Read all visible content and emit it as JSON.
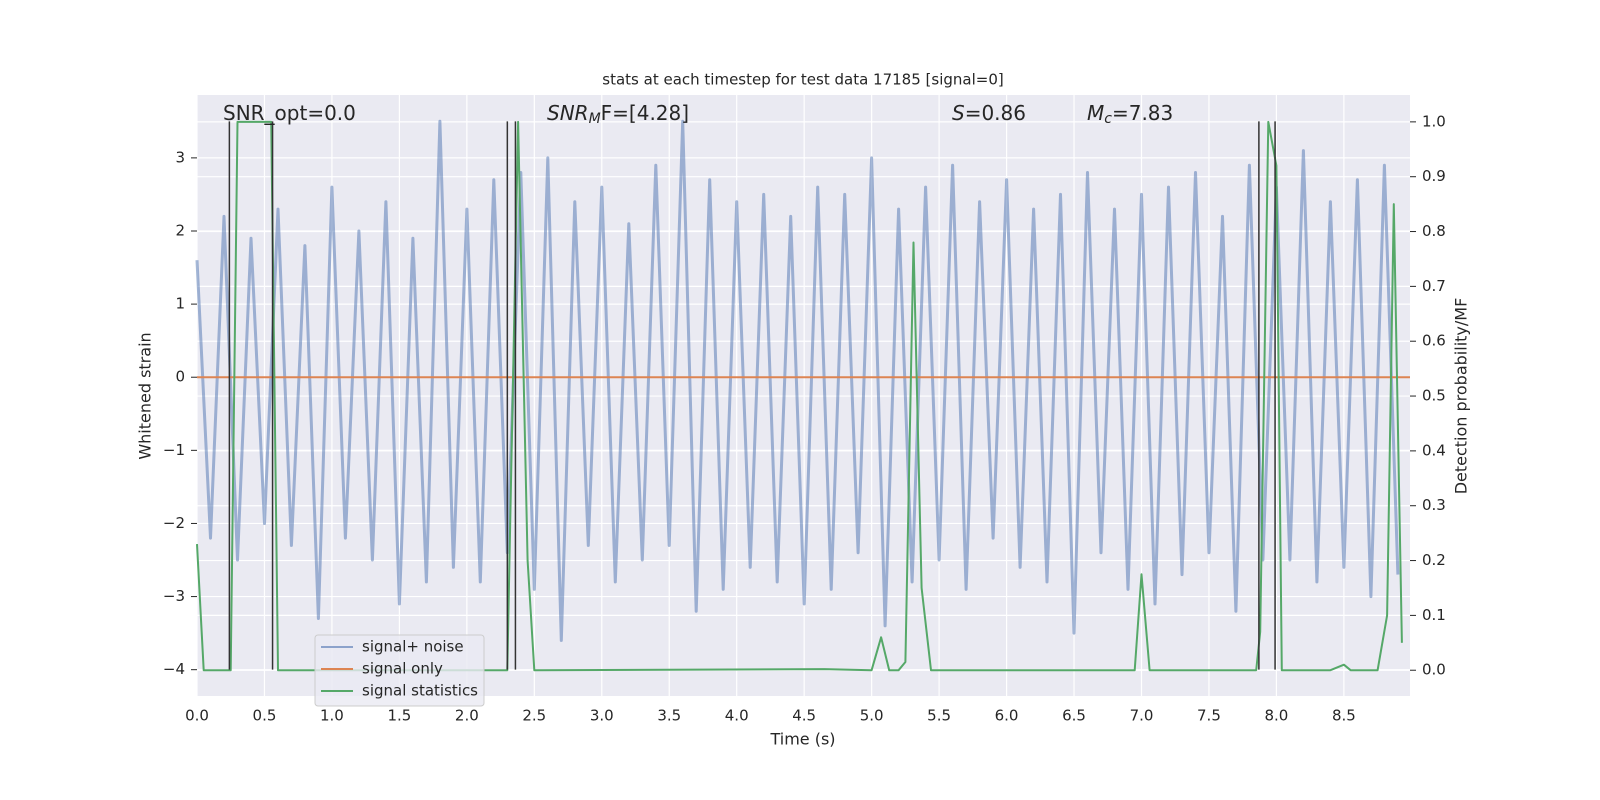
{
  "chart_data": {
    "type": "line",
    "title": "stats at each timestep for test data 17185 [signal=0]",
    "xlabel": "Time (s)",
    "ylabel": "Whitened strain",
    "y2label": "Detection probability/MF",
    "xlim": [
      0,
      8.99
    ],
    "ylim": [
      -4.36,
      3.86
    ],
    "y2lim": [
      -0.047,
      1.049
    ],
    "xticks": [
      {
        "value": 0,
        "label": "0.0"
      },
      0.5,
      {
        "value": 1,
        "label": "1.0"
      },
      1.5,
      {
        "value": 2,
        "label": "2.0"
      },
      2.5,
      {
        "value": 3,
        "label": "3.0"
      },
      3.5,
      {
        "value": 4,
        "label": "4.0"
      },
      4.5,
      {
        "value": 5,
        "label": "5.0"
      },
      5.5,
      {
        "value": 6,
        "label": "6.0"
      },
      6.5,
      {
        "value": 7,
        "label": "7.0"
      },
      7.5,
      {
        "value": 8,
        "label": "8.0"
      },
      8.5
    ],
    "yticks": [
      {
        "value": -4,
        "label": "−4"
      },
      {
        "value": -3,
        "label": "−3"
      },
      {
        "value": -2,
        "label": "−2"
      },
      {
        "value": -1,
        "label": "−1"
      },
      0,
      1,
      2,
      3
    ],
    "y2ticks": [
      {
        "value": 0,
        "label": "0.0"
      },
      0.1,
      0.2,
      0.3,
      0.4,
      0.5,
      0.6,
      0.7,
      0.8,
      0.9,
      {
        "value": 1,
        "label": "1.0"
      }
    ],
    "grid": true,
    "legend": "lower left",
    "series": [
      {
        "name": "signal+ noise",
        "color": "#4c72b0",
        "axis": "y",
        "x": [
          0,
          0.1,
          0.2,
          0.3,
          0.4,
          0.5,
          0.6,
          0.7,
          0.8,
          0.9,
          1,
          1.1,
          1.2,
          1.3,
          1.4,
          1.5,
          1.6,
          1.7,
          1.8,
          1.9,
          2,
          2.1,
          2.2,
          2.3,
          2.4,
          2.5,
          2.6,
          2.7,
          2.8,
          2.9,
          3,
          3.1,
          3.2,
          3.3,
          3.4,
          3.5,
          3.6,
          3.7,
          3.8,
          3.9,
          4,
          4.1,
          4.2,
          4.3,
          4.4,
          4.5,
          4.6,
          4.7,
          4.8,
          4.9,
          5,
          5.1,
          5.2,
          5.3,
          5.4,
          5.5,
          5.6,
          5.7,
          5.8,
          5.9,
          6,
          6.1,
          6.2,
          6.3,
          6.4,
          6.5,
          6.6,
          6.7,
          6.8,
          6.9,
          7,
          7.1,
          7.2,
          7.3,
          7.4,
          7.5,
          7.6,
          7.7,
          7.8,
          7.9,
          8,
          8.1,
          8.2,
          8.3,
          8.4,
          8.5,
          8.6,
          8.7,
          8.8,
          8.9
        ],
        "values": [
          1.6,
          -2.2,
          2.2,
          -2.5,
          1.9,
          -2.0,
          2.3,
          -2.3,
          1.8,
          -3.3,
          2.6,
          -2.2,
          2.0,
          -2.5,
          2.4,
          -3.1,
          1.9,
          -2.8,
          3.5,
          -2.6,
          2.3,
          -2.8,
          2.7,
          -2.4,
          2.8,
          -2.9,
          3.0,
          -3.6,
          2.4,
          -2.3,
          2.6,
          -2.8,
          2.1,
          -2.5,
          2.9,
          -2.3,
          3.5,
          -3.2,
          2.7,
          -2.9,
          2.4,
          -2.6,
          2.5,
          -2.8,
          2.2,
          -3.1,
          2.6,
          -2.9,
          2.5,
          -2.4,
          3.0,
          -3.4,
          2.3,
          -2.8,
          2.6,
          -2.5,
          2.9,
          -2.9,
          2.4,
          -2.2,
          2.7,
          -2.6,
          2.3,
          -2.8,
          2.5,
          -3.5,
          2.8,
          -2.4,
          2.3,
          -2.9,
          2.5,
          -3.1,
          2.6,
          -2.7,
          2.8,
          -2.4,
          2.2,
          -3.2,
          2.9,
          -2.5,
          2.6,
          -2.5,
          3.1,
          -2.8,
          2.4,
          -2.6,
          2.7,
          -3.0,
          2.9,
          -2.7
        ]
      },
      {
        "name": "signal only",
        "color": "#dd8452",
        "axis": "y",
        "x": [
          0,
          8.99
        ],
        "values": [
          0,
          0
        ]
      },
      {
        "name": "signal statistics",
        "color": "#55a868",
        "axis": "y2",
        "x": [
          0,
          0.05,
          0.25,
          0.3,
          0.55,
          0.6,
          0.65,
          2.3,
          2.38,
          2.45,
          2.5,
          4.65,
          5.0,
          5.07,
          5.13,
          5.2,
          5.25,
          5.31,
          5.37,
          5.44,
          6.95,
          7.0,
          7.06,
          7.85,
          7.88,
          7.94,
          8.0,
          8.04,
          8.4,
          8.5,
          8.55,
          8.75,
          8.82,
          8.87,
          8.93
        ],
        "values": [
          0.23,
          0,
          0,
          1.0,
          1.0,
          0,
          0,
          0,
          1.0,
          0.2,
          0,
          0.002,
          0,
          0.06,
          0,
          0,
          0.015,
          0.78,
          0.15,
          0,
          0,
          0.175,
          0,
          0,
          0.07,
          1.0,
          0.92,
          0,
          0,
          0.01,
          0,
          0,
          0.1,
          0.85,
          0.05
        ]
      }
    ],
    "vlines": {
      "x": [
        0.24,
        0.56,
        2.3,
        2.36,
        7.87,
        7.99
      ],
      "ymin": -4,
      "ymax": 3.5,
      "color": "#333333"
    },
    "annotations": [
      {
        "text": "SNR_opt=0.0"
      },
      {
        "italic": "SNR",
        "sub": "M",
        "text": "F=[4.28]"
      },
      {
        "italic": "S",
        "text": "=0.86"
      },
      {
        "italic": "M",
        "sub": "c",
        "text": "=7.83"
      }
    ]
  }
}
